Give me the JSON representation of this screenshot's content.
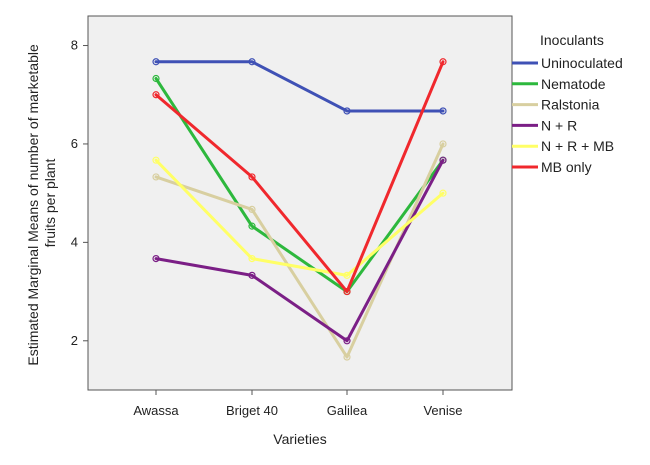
{
  "chart_data": {
    "type": "line",
    "categories": [
      "Awassa",
      "Briget 40",
      "Galilea",
      "Venise"
    ],
    "xlabel": "Varieties",
    "ylabel_lines": [
      "Estimated Marginal Means of number of marketable",
      "fruits per plant"
    ],
    "ylim": [
      1,
      8.6
    ],
    "yticks": [
      2,
      4,
      6,
      8
    ],
    "grid": false,
    "legend": {
      "title": "Inoculants",
      "placement": "right"
    },
    "series": [
      {
        "name": "Uninoculated",
        "color": "#3f51b5",
        "values": [
          7.67,
          7.67,
          6.67,
          6.67
        ]
      },
      {
        "name": "Nematode",
        "color": "#2db83d",
        "values": [
          7.33,
          4.33,
          3.0,
          5.67
        ]
      },
      {
        "name": "Ralstonia",
        "color": "#d8cfa0",
        "values": [
          5.33,
          4.67,
          1.67,
          6.0
        ]
      },
      {
        "name": "N + R",
        "color": "#7b1f86",
        "values": [
          3.67,
          3.33,
          2.0,
          5.67
        ]
      },
      {
        "name": "N + R + MB",
        "color": "#ffff66",
        "values": [
          5.67,
          3.67,
          3.33,
          5.0
        ]
      },
      {
        "name": "MB only",
        "color": "#f0282d",
        "values": [
          7.0,
          5.33,
          3.0,
          7.67
        ]
      }
    ]
  }
}
